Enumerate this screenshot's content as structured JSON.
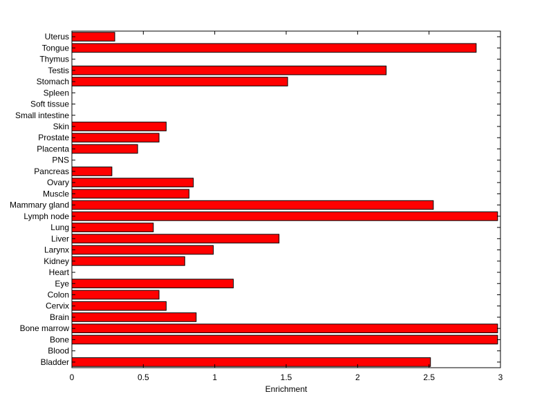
{
  "chart_data": {
    "type": "bar",
    "orientation": "horizontal",
    "title": "",
    "xlabel": "Enrichment",
    "ylabel": "",
    "xlim": [
      0,
      3
    ],
    "xticks": [
      "0",
      "0.5",
      "1",
      "1.5",
      "2",
      "2.5",
      "3"
    ],
    "grid": false,
    "bar_color": "#ff0000",
    "bar_edge_color": "#000000",
    "categories": [
      "Bladder",
      "Blood",
      "Bone",
      "Bone marrow",
      "Brain",
      "Cervix",
      "Colon",
      "Eye",
      "Heart",
      "Kidney",
      "Larynx",
      "Liver",
      "Lung",
      "Lymph node",
      "Mammary gland",
      "Muscle",
      "Ovary",
      "Pancreas",
      "PNS",
      "Placenta",
      "Prostate",
      "Skin",
      "Small intestine",
      "Soft tissue",
      "Spleen",
      "Stomach",
      "Testis",
      "Thymus",
      "Tongue",
      "Uterus"
    ],
    "values": [
      2.51,
      0,
      2.98,
      2.98,
      0.87,
      0.66,
      0.61,
      1.13,
      0,
      0.79,
      0.99,
      1.45,
      0.57,
      2.98,
      2.53,
      0.82,
      0.85,
      0.28,
      0,
      0.46,
      0.61,
      0.66,
      0,
      0,
      0,
      1.51,
      2.2,
      0,
      2.83,
      0.3
    ]
  }
}
